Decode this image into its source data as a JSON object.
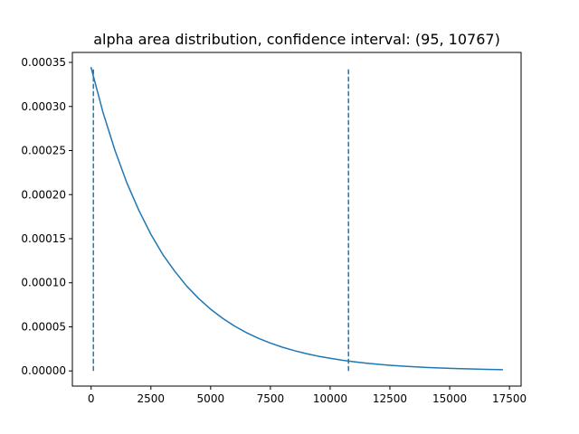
{
  "chart_data": {
    "type": "line",
    "title": "alpha area distribution, confidence interval:  (95, 10767)",
    "xlabel": "",
    "ylabel": "",
    "xlim": [
      -784,
      17988
    ],
    "ylim": [
      -1.72e-05,
      0.0003613
    ],
    "x_ticks": [
      0,
      2500,
      5000,
      7500,
      10000,
      12500,
      15000,
      17500
    ],
    "x_tick_labels": [
      "0",
      "2500",
      "5000",
      "7500",
      "10000",
      "12500",
      "15000",
      "17500"
    ],
    "y_ticks": [
      0,
      5e-05,
      0.0001,
      0.00015,
      0.0002,
      0.00025,
      0.0003,
      0.00035
    ],
    "y_tick_labels": [
      "0.00000",
      "0.00005",
      "0.00010",
      "0.00015",
      "0.00020",
      "0.00025",
      "0.00030",
      "0.00035"
    ],
    "grid": false,
    "legend": "none",
    "series": [
      {
        "style": "solid",
        "color": "#1f77b4",
        "x": [
          0,
          500,
          1000,
          1500,
          2000,
          2500,
          3000,
          3500,
          4000,
          4500,
          5000,
          5500,
          6000,
          6500,
          7000,
          7500,
          8000,
          8500,
          9000,
          9500,
          10000,
          10500,
          11000,
          11500,
          12000,
          12500,
          13000,
          13500,
          14000,
          14500,
          15000,
          15500,
          16000,
          16500,
          17000,
          17200
        ],
        "y": [
          0.000344,
          0.000293,
          0.00025,
          0.000213,
          0.000182,
          0.000155,
          0.000132,
          0.000113,
          9.62e-05,
          8.21e-05,
          7e-05,
          5.97e-05,
          5.09e-05,
          4.34e-05,
          3.7e-05,
          3.16e-05,
          2.69e-05,
          2.3e-05,
          1.96e-05,
          1.67e-05,
          1.43e-05,
          1.22e-05,
          1.04e-05,
          8.8e-06,
          7.5e-06,
          6.4e-06,
          5.5e-06,
          4.7e-06,
          4e-06,
          3.4e-06,
          2.9e-06,
          2.5e-06,
          2.1e-06,
          1.8e-06,
          1.5e-06,
          1.4e-06
        ]
      }
    ],
    "vlines": [
      {
        "x": 95,
        "ymin": 0,
        "ymax": 0.000344,
        "style": "dashed",
        "color": "#1f77b4"
      },
      {
        "x": 10767,
        "ymin": 0,
        "ymax": 0.000344,
        "style": "dashed",
        "color": "#1f77b4"
      }
    ]
  }
}
